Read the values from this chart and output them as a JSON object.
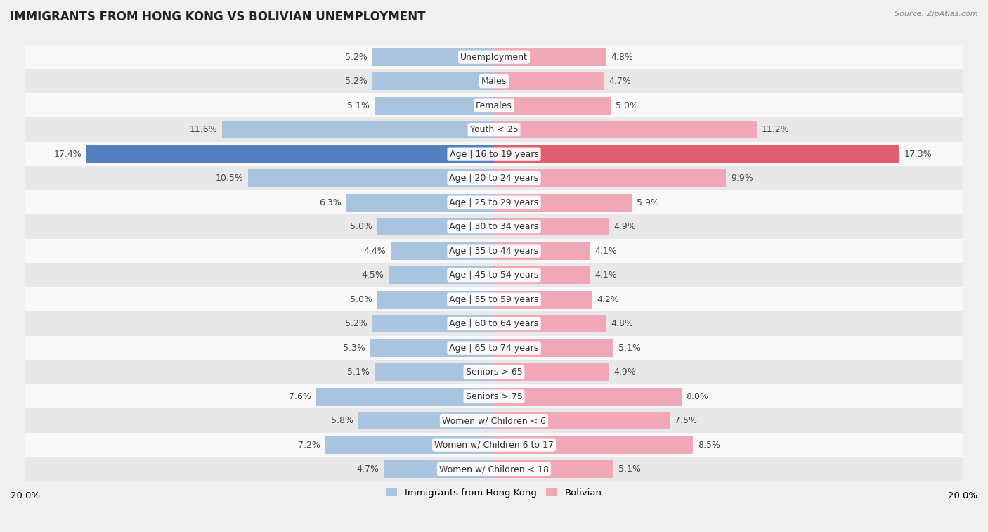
{
  "title": "IMMIGRANTS FROM HONG KONG VS BOLIVIAN UNEMPLOYMENT",
  "source": "Source: ZipAtlas.com",
  "categories": [
    "Unemployment",
    "Males",
    "Females",
    "Youth < 25",
    "Age | 16 to 19 years",
    "Age | 20 to 24 years",
    "Age | 25 to 29 years",
    "Age | 30 to 34 years",
    "Age | 35 to 44 years",
    "Age | 45 to 54 years",
    "Age | 55 to 59 years",
    "Age | 60 to 64 years",
    "Age | 65 to 74 years",
    "Seniors > 65",
    "Seniors > 75",
    "Women w/ Children < 6",
    "Women w/ Children 6 to 17",
    "Women w/ Children < 18"
  ],
  "hk_values": [
    5.2,
    5.2,
    5.1,
    11.6,
    17.4,
    10.5,
    6.3,
    5.0,
    4.4,
    4.5,
    5.0,
    5.2,
    5.3,
    5.1,
    7.6,
    5.8,
    7.2,
    4.7
  ],
  "bo_values": [
    4.8,
    4.7,
    5.0,
    11.2,
    17.3,
    9.9,
    5.9,
    4.9,
    4.1,
    4.1,
    4.2,
    4.8,
    5.1,
    4.9,
    8.0,
    7.5,
    8.5,
    5.1
  ],
  "hk_color": "#aac4e0",
  "bo_color": "#f0a8b8",
  "hk_highlight_color": "#5580c0",
  "bo_highlight_color": "#e06070",
  "row_color_even": "#e8e8e8",
  "row_color_odd": "#f8f8f8",
  "background_color": "#f0f0f0",
  "axis_max": 20.0,
  "label_fontsize": 9.0,
  "title_fontsize": 12,
  "legend_hk": "Immigrants from Hong Kong",
  "legend_bo": "Bolivian",
  "bar_height": 0.72
}
